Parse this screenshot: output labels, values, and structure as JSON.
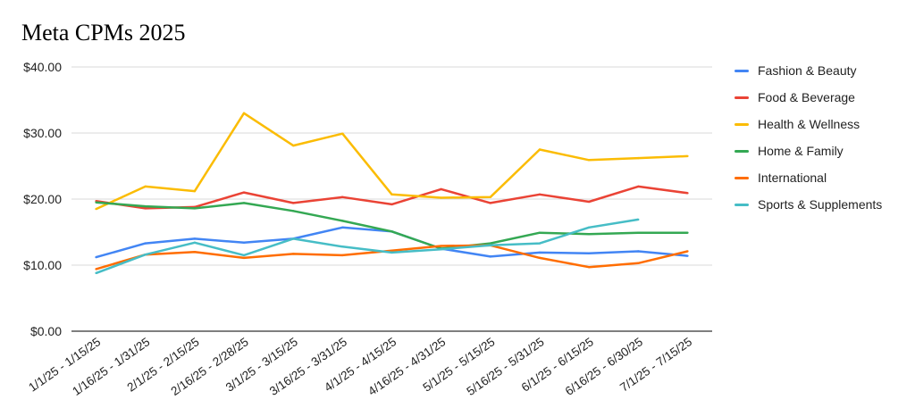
{
  "chart_data": {
    "type": "line",
    "title": "Meta CPMs 2025",
    "xlabel": "",
    "ylabel": "",
    "ylim": [
      0,
      40
    ],
    "yticks": [
      "$0.00",
      "$10.00",
      "$20.00",
      "$30.00",
      "$40.00"
    ],
    "grid": true,
    "legend_position": "right",
    "categories": [
      "1/1/25 - 1/15/25",
      "1/16/25 - 1/31/25",
      "2/1/25 - 2/15/25",
      "2/16/25 - 2/28/25",
      "3/1/25 - 3/15/25",
      "3/16/25 - 3/31/25",
      "4/1/25 - 4/15/25",
      "4/16/25 - 4/31/25",
      "5/1/25 - 5/15/25",
      "5/16/25 - 5/31/25",
      "6/1/25 - 6/15/25",
      "6/16/25 - 6/30/25",
      "7/1/25 - 7/15/25"
    ],
    "series": [
      {
        "name": "Fashion & Beauty",
        "color": "#4285f4",
        "values": [
          11.2,
          13.3,
          14.0,
          13.4,
          14.0,
          15.7,
          15.1,
          12.5,
          11.3,
          11.9,
          11.8,
          12.1,
          11.4
        ]
      },
      {
        "name": "Food & Beverage",
        "color": "#ea4335",
        "values": [
          19.7,
          18.6,
          18.8,
          21.0,
          19.4,
          20.3,
          19.2,
          21.5,
          19.4,
          20.7,
          19.6,
          21.9,
          20.9
        ]
      },
      {
        "name": "Health & Wellness",
        "color": "#fbbc04",
        "values": [
          18.5,
          21.9,
          21.2,
          33.0,
          28.1,
          29.9,
          20.7,
          20.2,
          20.3,
          27.5,
          25.9,
          26.2,
          26.5
        ]
      },
      {
        "name": "Home & Family",
        "color": "#34a853",
        "values": [
          19.5,
          18.9,
          18.6,
          19.4,
          18.2,
          16.7,
          15.1,
          12.5,
          13.3,
          14.9,
          14.7,
          14.9,
          14.9
        ]
      },
      {
        "name": "International",
        "color": "#ff6d01",
        "values": [
          9.4,
          11.6,
          12.0,
          11.1,
          11.7,
          11.5,
          12.2,
          12.9,
          13.0,
          11.1,
          9.7,
          10.3,
          12.1
        ]
      },
      {
        "name": "Sports & Supplements",
        "color": "#46bdc6",
        "values": [
          8.8,
          11.6,
          13.4,
          11.5,
          14.0,
          12.8,
          11.9,
          12.4,
          13.0,
          13.3,
          15.7,
          16.9,
          null
        ]
      }
    ]
  }
}
